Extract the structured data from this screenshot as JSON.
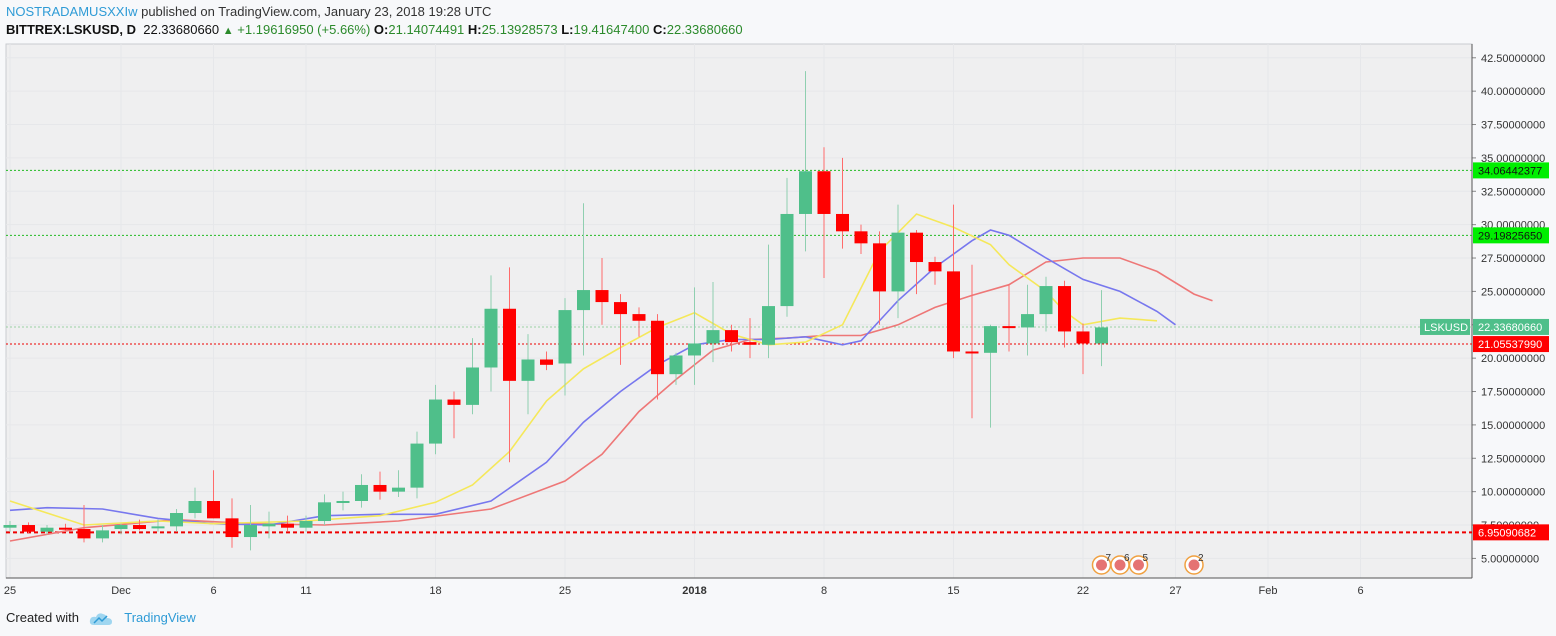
{
  "header": {
    "user": "NOSTRADAMUSXXIw",
    "published": "published on TradingView.com, January 23, 2018 19:28 UTC",
    "symbol": "BITTREX:LSKUSD, D",
    "price": "22.33680660",
    "change": "+1.19616950 (+5.66%)",
    "o_label": "O:",
    "o": "21.14074491",
    "h_label": "H:",
    "h": "25.13928573",
    "l_label": "L:",
    "l": "19.41647400",
    "c_label": "C:",
    "c": "22.33680660"
  },
  "footer": {
    "created": "Created with",
    "brand": "TradingView"
  },
  "colors": {
    "up": "#4fbf8a",
    "down": "#ff0000",
    "ma_fast": "#f5e85a",
    "ma_mid": "#7777ee",
    "ma_slow": "#ee7777",
    "grid": "#e6e7ea"
  },
  "chart_data": {
    "type": "candlestick",
    "symbol": "LSKUSD",
    "ylim": [
      3.5,
      43.5
    ],
    "y_ticks": [
      "5.00000000",
      "7.50000000",
      "10.00000000",
      "12.50000000",
      "15.00000000",
      "17.50000000",
      "20.00000000",
      "22.50000000",
      "25.00000000",
      "27.50000000",
      "30.00000000",
      "32.50000000",
      "35.00000000",
      "37.50000000",
      "40.00000000",
      "42.50000000"
    ],
    "x_ticks": [
      {
        "label": "25",
        "day": -6
      },
      {
        "label": "Dec",
        "day": 0
      },
      {
        "label": "6",
        "day": 5
      },
      {
        "label": "11",
        "day": 10
      },
      {
        "label": "18",
        "day": 17
      },
      {
        "label": "25",
        "day": 24
      },
      {
        "label": "2018",
        "day": 31
      },
      {
        "label": "8",
        "day": 38
      },
      {
        "label": "15",
        "day": 45
      },
      {
        "label": "22",
        "day": 52
      },
      {
        "label": "27",
        "day": 57
      },
      {
        "label": "Feb",
        "day": 62
      },
      {
        "label": "6",
        "day": 67
      }
    ],
    "candles": [
      [
        -6,
        7.3,
        7.8,
        7.0,
        7.5
      ],
      [
        -5,
        7.5,
        7.7,
        6.9,
        7.0
      ],
      [
        -4,
        7.0,
        7.5,
        6.8,
        7.3
      ],
      [
        -3,
        7.3,
        7.6,
        7.0,
        7.2
      ],
      [
        -2,
        7.2,
        9.0,
        6.2,
        6.5
      ],
      [
        -1,
        6.5,
        7.5,
        6.2,
        7.1
      ],
      [
        0,
        7.2,
        7.6,
        6.8,
        7.5
      ],
      [
        1,
        7.5,
        7.9,
        7.1,
        7.2
      ],
      [
        2,
        7.3,
        7.9,
        7.0,
        7.4
      ],
      [
        3,
        7.4,
        8.7,
        7.0,
        8.4
      ],
      [
        4,
        8.4,
        10.3,
        8.0,
        9.3
      ],
      [
        5,
        9.3,
        11.6,
        8.0,
        8.0
      ],
      [
        6,
        8.0,
        9.5,
        5.8,
        6.6
      ],
      [
        7,
        6.6,
        9.0,
        5.6,
        7.5
      ],
      [
        8,
        7.4,
        8.5,
        6.5,
        7.6
      ],
      [
        9,
        7.6,
        8.2,
        7.0,
        7.3
      ],
      [
        10,
        7.3,
        8.2,
        7.0,
        7.8
      ],
      [
        11,
        7.8,
        9.8,
        7.5,
        9.2
      ],
      [
        12,
        9.2,
        10.0,
        8.6,
        9.3
      ],
      [
        13,
        9.3,
        11.3,
        8.8,
        10.5
      ],
      [
        14,
        10.5,
        11.5,
        9.4,
        10.0
      ],
      [
        15,
        10.0,
        11.6,
        9.6,
        10.3
      ],
      [
        16,
        10.3,
        14.5,
        9.5,
        13.6
      ],
      [
        17,
        13.6,
        18.0,
        12.8,
        16.9
      ],
      [
        18,
        16.9,
        17.5,
        14.0,
        16.5
      ],
      [
        19,
        16.5,
        21.5,
        15.8,
        19.3
      ],
      [
        20,
        19.3,
        26.2,
        17.5,
        23.7
      ],
      [
        21,
        23.7,
        26.8,
        12.2,
        18.3
      ],
      [
        22,
        18.3,
        21.8,
        15.8,
        19.9
      ],
      [
        23,
        19.9,
        20.5,
        19.1,
        19.5
      ],
      [
        24,
        19.6,
        24.5,
        17.2,
        23.6
      ],
      [
        25,
        23.6,
        31.6,
        20.2,
        25.1
      ],
      [
        26,
        25.1,
        27.5,
        22.5,
        24.2
      ],
      [
        27,
        24.2,
        24.8,
        19.5,
        23.3
      ],
      [
        28,
        23.3,
        23.8,
        21.6,
        22.8
      ],
      [
        29,
        22.8,
        23.3,
        16.9,
        18.8
      ],
      [
        30,
        18.8,
        20.4,
        18.0,
        20.2
      ],
      [
        31,
        20.2,
        25.3,
        18.0,
        21.1
      ],
      [
        32,
        21.1,
        25.7,
        19.7,
        22.1
      ],
      [
        33,
        22.1,
        22.5,
        20.5,
        21.2
      ],
      [
        34,
        21.2,
        23.0,
        20.0,
        21.0
      ],
      [
        35,
        21.0,
        28.5,
        20.0,
        23.9
      ],
      [
        36,
        23.9,
        33.5,
        23.1,
        30.8
      ],
      [
        37,
        30.8,
        41.5,
        28.0,
        34.0
      ],
      [
        38,
        34.0,
        35.8,
        26.0,
        30.8
      ],
      [
        39,
        30.8,
        35.0,
        28.2,
        29.5
      ],
      [
        40,
        29.5,
        30.0,
        27.8,
        28.6
      ],
      [
        41,
        28.6,
        29.5,
        22.5,
        25.0
      ],
      [
        42,
        25.0,
        31.5,
        23.0,
        29.4
      ],
      [
        43,
        29.4,
        29.6,
        24.8,
        27.2
      ],
      [
        44,
        27.2,
        27.6,
        25.5,
        26.5
      ],
      [
        45,
        26.5,
        31.5,
        20.0,
        20.5
      ],
      [
        46,
        20.5,
        27.0,
        15.5,
        20.4
      ],
      [
        47,
        20.4,
        22.5,
        14.8,
        22.4
      ],
      [
        48,
        22.4,
        25.5,
        20.5,
        22.3
      ],
      [
        49,
        22.3,
        25.5,
        20.2,
        23.3
      ],
      [
        50,
        23.3,
        26.1,
        22.0,
        25.4
      ],
      [
        51,
        25.4,
        25.8,
        20.8,
        22.0
      ],
      [
        52,
        22.0,
        22.6,
        18.8,
        21.1
      ],
      [
        53,
        21.1,
        25.1,
        19.4,
        22.3
      ]
    ],
    "ma_fast": [
      [
        -6,
        9.3
      ],
      [
        -2,
        7.5
      ],
      [
        2,
        7.8
      ],
      [
        5,
        7.6
      ],
      [
        10,
        7.8
      ],
      [
        14,
        8.2
      ],
      [
        17,
        9.2
      ],
      [
        19,
        10.5
      ],
      [
        21,
        13.0
      ],
      [
        23,
        16.8
      ],
      [
        25,
        19.2
      ],
      [
        27,
        20.8
      ],
      [
        29,
        22.3
      ],
      [
        31,
        23.4
      ],
      [
        33,
        21.8
      ],
      [
        35,
        21.0
      ],
      [
        37,
        21.2
      ],
      [
        39,
        22.5
      ],
      [
        41,
        28.0
      ],
      [
        43,
        30.8
      ],
      [
        45,
        29.8
      ],
      [
        47,
        28.5
      ],
      [
        48,
        27.0
      ],
      [
        50,
        25.0
      ],
      [
        51,
        23.5
      ],
      [
        52,
        22.5
      ],
      [
        54,
        23.0
      ],
      [
        56,
        22.8
      ]
    ],
    "ma_mid": [
      [
        -6,
        8.6
      ],
      [
        -4,
        8.8
      ],
      [
        -1,
        8.7
      ],
      [
        2,
        8.0
      ],
      [
        5,
        7.6
      ],
      [
        8,
        7.5
      ],
      [
        11,
        8.2
      ],
      [
        14,
        8.3
      ],
      [
        17,
        8.3
      ],
      [
        20,
        9.3
      ],
      [
        23,
        12.2
      ],
      [
        25,
        15.2
      ],
      [
        27,
        17.5
      ],
      [
        29,
        19.5
      ],
      [
        31,
        21.0
      ],
      [
        33,
        21.4
      ],
      [
        35,
        21.4
      ],
      [
        37,
        21.6
      ],
      [
        39,
        21.0
      ],
      [
        40,
        21.3
      ],
      [
        42,
        24.3
      ],
      [
        44,
        26.8
      ],
      [
        46,
        28.8
      ],
      [
        47,
        29.6
      ],
      [
        48,
        29.2
      ],
      [
        50,
        27.5
      ],
      [
        52,
        25.9
      ],
      [
        54,
        25.0
      ],
      [
        56,
        23.5
      ],
      [
        57,
        22.5
      ]
    ],
    "ma_slow": [
      [
        -6,
        6.3
      ],
      [
        -2,
        7.3
      ],
      [
        3,
        7.9
      ],
      [
        7,
        7.6
      ],
      [
        11,
        7.5
      ],
      [
        15,
        7.8
      ],
      [
        20,
        8.7
      ],
      [
        24,
        10.8
      ],
      [
        26,
        12.8
      ],
      [
        28,
        16.0
      ],
      [
        30,
        18.4
      ],
      [
        32,
        20.6
      ],
      [
        34,
        21.4
      ],
      [
        36,
        21.5
      ],
      [
        38,
        21.7
      ],
      [
        40,
        21.7
      ],
      [
        42,
        22.5
      ],
      [
        44,
        23.8
      ],
      [
        46,
        24.7
      ],
      [
        48,
        25.5
      ],
      [
        50,
        27.2
      ],
      [
        52,
        27.5
      ],
      [
        54,
        27.5
      ],
      [
        56,
        26.5
      ],
      [
        58,
        24.8
      ],
      [
        59,
        24.3
      ]
    ],
    "levels": [
      {
        "value": 34.06442377,
        "label": "34.06442377",
        "color": "#22bb22",
        "bg": "#00ee00",
        "dash": "2,2",
        "width": 1
      },
      {
        "value": 29.1982565,
        "label": "29.19825650",
        "color": "#22bb22",
        "bg": "#00ee00",
        "dash": "2,2",
        "width": 1
      },
      {
        "value": 22.3368066,
        "label": "22.33680660",
        "color": "#9bd0a5",
        "bg": "#4fbf8a",
        "dash": "2,2",
        "width": 1
      },
      {
        "value": 21.0553799,
        "label": "21.05537990",
        "color": "#ee0000",
        "bg": "#ff0000",
        "dash": "2,2",
        "width": 1
      },
      {
        "value": 6.95090682,
        "label": "6.95090682",
        "color": "#ee0000",
        "bg": "#ff0000",
        "dash": "4,3",
        "width": 2
      }
    ],
    "last_label": "LSKUSD",
    "events": [
      {
        "day": 53,
        "label": "7"
      },
      {
        "day": 54,
        "label": "6"
      },
      {
        "day": 55,
        "label": "5"
      },
      {
        "day": 58,
        "label": "2"
      }
    ]
  }
}
